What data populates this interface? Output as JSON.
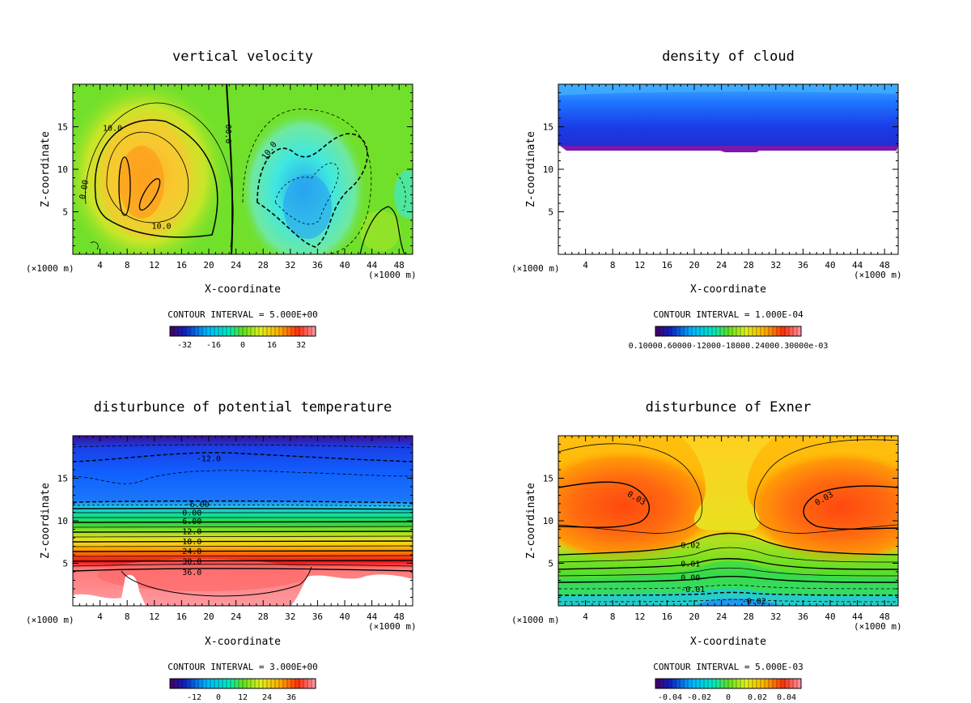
{
  "chart_data": [
    {
      "type": "contour",
      "title": "vertical velocity",
      "xlabel": "X-coordinate",
      "ylabel": "Z-coordinate",
      "x_unit": "(×1000 m)",
      "xlim": [
        0,
        50
      ],
      "ylim": [
        0,
        20
      ],
      "xticks": [
        4,
        8,
        12,
        16,
        20,
        24,
        28,
        32,
        36,
        40,
        44,
        48
      ],
      "yticks": [
        5,
        10,
        15
      ],
      "contour_labels": [
        {
          "text": "10.0",
          "x": 4.4,
          "y": 14.9
        },
        {
          "text": "00.0",
          "x": 23.0,
          "y": 15.3
        },
        {
          "text": "0.00",
          "x": 1.3,
          "y": 6.5
        },
        {
          "text": "10.0",
          "x": 11.6,
          "y": 3.4
        },
        {
          "text": "10.0",
          "x": 28.0,
          "y": 11.3
        }
      ],
      "contour_interval_text": "CONTOUR INTERVAL = 5.000E+00",
      "colorbar_ticks": [
        "-32",
        "-16",
        "0",
        "16",
        "32"
      ],
      "colorbar_range": [
        -40,
        40
      ]
    },
    {
      "type": "contour",
      "title": "density of cloud",
      "xlabel": "X-coordinate",
      "ylabel": "Z-coordinate",
      "x_unit": "(×1000 m)",
      "xlim": [
        0,
        50
      ],
      "ylim": [
        0,
        20
      ],
      "xticks": [
        4,
        8,
        12,
        16,
        20,
        24,
        28,
        32,
        36,
        40,
        44,
        48
      ],
      "yticks": [
        5,
        10,
        15
      ],
      "contour_interval_text": "CONTOUR INTERVAL = 1.000E-04",
      "colorbar_tick_text": "0.10000.60000-12000-18000.24000.30000e-03"
    },
    {
      "type": "contour",
      "title": "disturbunce of potential temperature",
      "xlabel": "X-coordinate",
      "ylabel": "Z-coordinate",
      "x_unit": "(×1000 m)",
      "xlim": [
        0,
        50
      ],
      "ylim": [
        0,
        20
      ],
      "xticks": [
        4,
        8,
        12,
        16,
        20,
        24,
        28,
        32,
        36,
        40,
        44,
        48
      ],
      "yticks": [
        5,
        10,
        15
      ],
      "contour_labels": [
        {
          "text": "-12.0",
          "x": 18.2,
          "y": 17.4
        },
        {
          "text": "-6.00",
          "x": 16.5,
          "y": 12.0
        },
        {
          "text": "0.00",
          "x": 16.1,
          "y": 11.0
        },
        {
          "text": "6.00",
          "x": 16.1,
          "y": 10.0
        },
        {
          "text": "12.0",
          "x": 16.1,
          "y": 8.8
        },
        {
          "text": "18.0",
          "x": 16.1,
          "y": 7.6
        },
        {
          "text": "24.0",
          "x": 16.1,
          "y": 6.5
        },
        {
          "text": "30.0",
          "x": 16.1,
          "y": 5.3
        },
        {
          "text": "36.0",
          "x": 16.1,
          "y": 4.0
        }
      ],
      "contour_interval_text": "CONTOUR INTERVAL = 3.000E+00",
      "colorbar_ticks": [
        "-12",
        "0",
        "12",
        "24",
        "36"
      ],
      "colorbar_range": [
        -24,
        48
      ]
    },
    {
      "type": "contour",
      "title": "disturbunce of Exner",
      "xlabel": "X-coordinate",
      "ylabel": "Z-coordinate",
      "x_unit": "(×1000 m)",
      "xlim": [
        0,
        50
      ],
      "ylim": [
        0,
        20
      ],
      "xticks": [
        4,
        8,
        12,
        16,
        20,
        24,
        28,
        32,
        36,
        40,
        44,
        48
      ],
      "yticks": [
        5,
        10,
        15
      ],
      "contour_labels": [
        {
          "text": "0.03",
          "x": 10.3,
          "y": 13.3
        },
        {
          "text": "0.03",
          "x": 37.8,
          "y": 12.1
        },
        {
          "text": "0.02",
          "x": 18.0,
          "y": 7.2
        },
        {
          "text": "0.01",
          "x": 18.0,
          "y": 5.0
        },
        {
          "text": "0.00",
          "x": 18.0,
          "y": 3.4
        },
        {
          "text": "-0.01",
          "x": 18.0,
          "y": 2.0
        },
        {
          "text": "-0.02",
          "x": 27.0,
          "y": 0.6
        }
      ],
      "contour_interval_text": "CONTOUR INTERVAL = 5.000E-03",
      "colorbar_ticks": [
        "-0.04",
        "-0.02",
        "0",
        "0.02",
        "0.04"
      ],
      "colorbar_range": [
        -0.05,
        0.05
      ]
    }
  ]
}
